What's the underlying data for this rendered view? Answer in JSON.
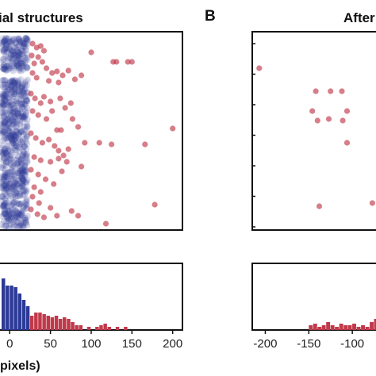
{
  "panels": [
    {
      "letter": "",
      "title": "ial structures"
    },
    {
      "letter": "B",
      "title": "After"
    }
  ],
  "chart_data": [
    {
      "type": "scatter",
      "title": "ial structures",
      "xlabel": "pixels)",
      "xlim": [
        -10,
        212
      ],
      "x_ticks": [
        0,
        50,
        100,
        150,
        200
      ],
      "x_tick_labels": [
        "0",
        "50",
        "100",
        "150",
        "200"
      ],
      "colors": {
        "within": "#2b3a96",
        "outlier": "#c0394a"
      },
      "blue_band_x": [
        -10,
        22
      ],
      "outliers": [
        [
          28,
          55
        ],
        [
          33,
          60
        ],
        [
          38,
          58
        ],
        [
          42,
          64
        ],
        [
          27,
          70
        ],
        [
          35,
          72
        ],
        [
          30,
          80
        ],
        [
          40,
          78
        ],
        [
          45,
          86
        ],
        [
          52,
          92
        ],
        [
          58,
          90
        ],
        [
          65,
          95
        ],
        [
          72,
          89
        ],
        [
          80,
          100
        ],
        [
          88,
          95
        ],
        [
          28,
          92
        ],
        [
          33,
          98
        ],
        [
          48,
          102
        ],
        [
          60,
          104
        ],
        [
          100,
          66
        ],
        [
          127,
          78
        ],
        [
          131,
          78
        ],
        [
          145,
          78
        ],
        [
          150,
          78
        ],
        [
          26,
          118
        ],
        [
          31,
          124
        ],
        [
          38,
          130
        ],
        [
          42,
          122
        ],
        [
          50,
          128
        ],
        [
          62,
          124
        ],
        [
          68,
          136
        ],
        [
          75,
          130
        ],
        [
          28,
          140
        ],
        [
          35,
          145
        ],
        [
          45,
          150
        ],
        [
          52,
          140
        ],
        [
          58,
          164
        ],
        [
          63,
          164
        ],
        [
          77,
          150
        ],
        [
          84,
          160
        ],
        [
          26,
          168
        ],
        [
          32,
          174
        ],
        [
          40,
          180
        ],
        [
          48,
          176
        ],
        [
          55,
          184
        ],
        [
          60,
          190
        ],
        [
          66,
          196
        ],
        [
          72,
          188
        ],
        [
          92,
          180
        ],
        [
          110,
          180
        ],
        [
          125,
          182
        ],
        [
          166,
          182
        ],
        [
          200,
          162
        ],
        [
          30,
          198
        ],
        [
          38,
          202
        ],
        [
          50,
          204
        ],
        [
          60,
          200
        ],
        [
          70,
          204
        ],
        [
          88,
          210
        ],
        [
          26,
          214
        ],
        [
          35,
          220
        ],
        [
          44,
          226
        ],
        [
          54,
          232
        ],
        [
          64,
          216
        ],
        [
          30,
          236
        ],
        [
          38,
          242
        ],
        [
          28,
          248
        ],
        [
          36,
          256
        ],
        [
          50,
          262
        ],
        [
          26,
          264
        ],
        [
          34,
          270
        ],
        [
          42,
          274
        ],
        [
          58,
          272
        ],
        [
          76,
          266
        ],
        [
          178,
          258
        ],
        [
          84,
          272
        ],
        [
          118,
          282
        ]
      ],
      "histogram": {
        "bin_width": 5,
        "blue_bins": [
          [
            -10,
            65
          ],
          [
            -5,
            56
          ],
          [
            0,
            56
          ],
          [
            5,
            54
          ],
          [
            10,
            46
          ],
          [
            15,
            38
          ],
          [
            20,
            30
          ]
        ],
        "red_bins": [
          [
            25,
            18
          ],
          [
            30,
            22
          ],
          [
            35,
            22
          ],
          [
            40,
            20
          ],
          [
            45,
            18
          ],
          [
            50,
            16
          ],
          [
            55,
            18
          ],
          [
            60,
            14
          ],
          [
            65,
            16
          ],
          [
            70,
            14
          ],
          [
            75,
            10
          ],
          [
            80,
            6
          ],
          [
            85,
            6
          ],
          [
            95,
            4
          ],
          [
            105,
            4
          ],
          [
            110,
            6
          ],
          [
            115,
            8
          ],
          [
            120,
            4
          ],
          [
            130,
            4
          ],
          [
            140,
            4
          ]
        ]
      }
    },
    {
      "type": "scatter",
      "title": "After",
      "xlim": [
        -215,
        -60
      ],
      "x_ticks": [
        -200,
        -150,
        -100
      ],
      "x_tick_labels": [
        "-200",
        "-150",
        "-100"
      ],
      "colors": {
        "outlier": "#c0394a"
      },
      "outliers": [
        [
          -207,
          86
        ],
        [
          -146,
          140
        ],
        [
          -142,
          115
        ],
        [
          -140,
          152
        ],
        [
          -127,
          150
        ],
        [
          -125,
          115
        ],
        [
          -112,
          115
        ],
        [
          -106,
          140
        ],
        [
          -111,
          152
        ],
        [
          -106,
          180
        ],
        [
          -138,
          260
        ],
        [
          -77,
          256
        ]
      ],
      "histogram": {
        "bin_width": 5,
        "red_bins": [
          [
            -150,
            6
          ],
          [
            -145,
            8
          ],
          [
            -140,
            4
          ],
          [
            -135,
            6
          ],
          [
            -130,
            10
          ],
          [
            -125,
            6
          ],
          [
            -120,
            4
          ],
          [
            -115,
            8
          ],
          [
            -110,
            6
          ],
          [
            -105,
            6
          ],
          [
            -100,
            8
          ],
          [
            -95,
            4
          ],
          [
            -90,
            6
          ],
          [
            -85,
            4
          ],
          [
            -80,
            10
          ],
          [
            -75,
            14
          ]
        ]
      }
    }
  ]
}
